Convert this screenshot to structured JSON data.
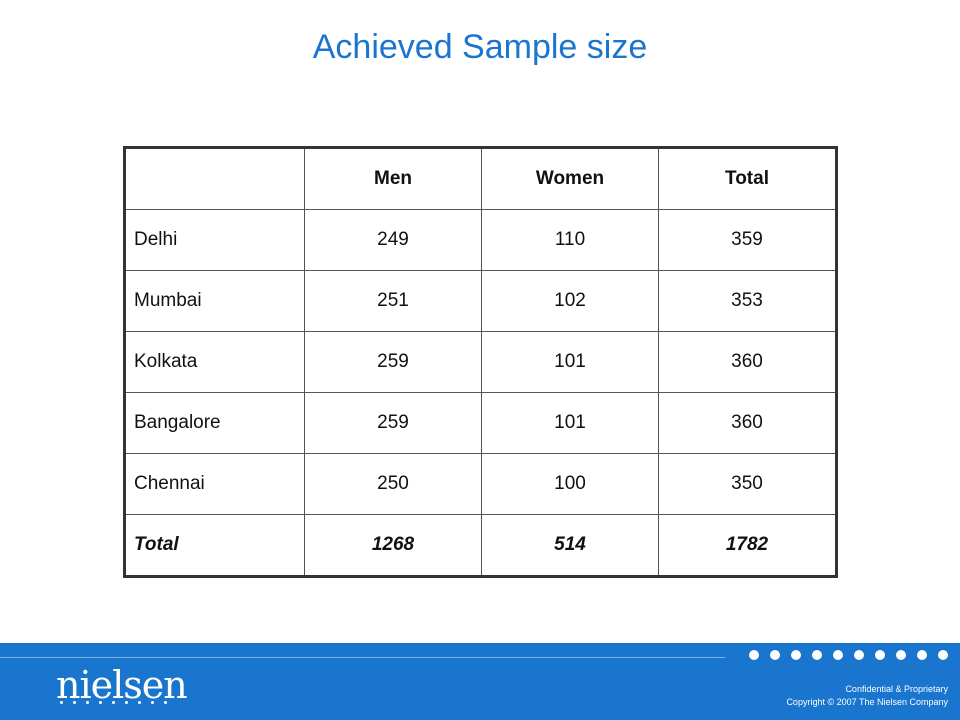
{
  "slide": {
    "title": "Achieved Sample size"
  },
  "table": {
    "headers": [
      "",
      "Men",
      "Women",
      "Total"
    ],
    "rows": [
      {
        "city": "Delhi",
        "men": "249",
        "women": "110",
        "total": "359"
      },
      {
        "city": "Mumbai",
        "men": "251",
        "women": "102",
        "total": "353"
      },
      {
        "city": "Kolkata",
        "men": "259",
        "women": "101",
        "total": "360"
      },
      {
        "city": "Bangalore",
        "men": "259",
        "women": "101",
        "total": "360"
      },
      {
        "city": "Chennai",
        "men": "250",
        "women": "100",
        "total": "350"
      }
    ],
    "total_row": {
      "city": "Total",
      "men": "1268",
      "women": "514",
      "total": "1782"
    }
  },
  "footer": {
    "logo": "nielsen",
    "confidential": "Confidential & Proprietary",
    "copyright": "Copyright © 2007 The Nielsen Company"
  },
  "colors": {
    "accent": "#1a75cf",
    "footer_bg": "#1a75cf",
    "title": "#1a75cf"
  }
}
